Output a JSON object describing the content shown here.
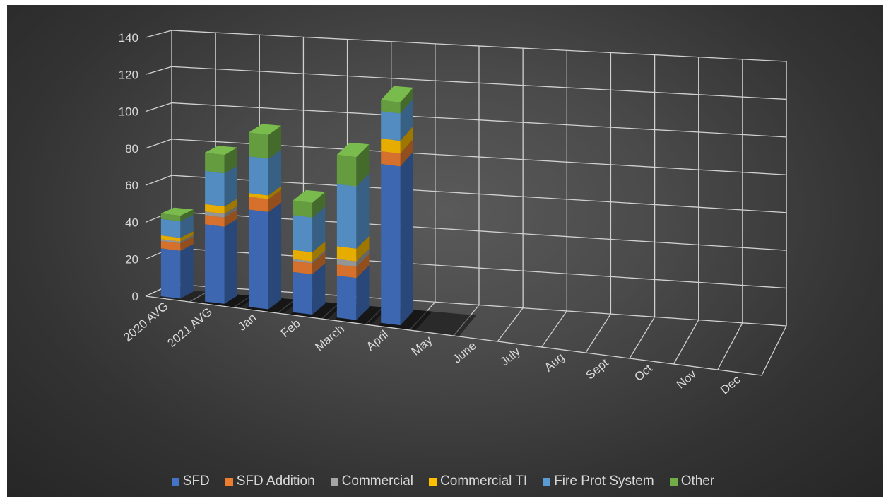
{
  "chart_data": {
    "type": "bar",
    "stacked": true,
    "view": "3d-column",
    "categories": [
      "2020 AVG",
      "2021 AVG",
      "Jan",
      "Feb",
      "March",
      "April",
      "May",
      "June",
      "July",
      "Aug",
      "Sept",
      "Oct",
      "Nov",
      "Dec"
    ],
    "series": [
      {
        "name": "SFD",
        "color": "#4472C4",
        "values": [
          26,
          42,
          53,
          22,
          23,
          87,
          0,
          0,
          0,
          0,
          0,
          0,
          0,
          0
        ]
      },
      {
        "name": "SFD Addition",
        "color": "#ED7D31",
        "values": [
          4,
          5,
          7,
          6,
          6,
          7,
          0,
          0,
          0,
          0,
          0,
          0,
          0,
          0
        ]
      },
      {
        "name": "Commercial",
        "color": "#A5A5A5",
        "values": [
          1,
          2,
          0,
          1,
          3,
          0,
          0,
          0,
          0,
          0,
          0,
          0,
          0,
          0
        ]
      },
      {
        "name": "Commercial TI",
        "color": "#FFC000",
        "values": [
          2,
          4,
          2,
          5,
          7,
          7,
          0,
          0,
          0,
          0,
          0,
          0,
          0,
          0
        ]
      },
      {
        "name": "Fire Prot System",
        "color": "#5B9BD5",
        "values": [
          9,
          18,
          20,
          19,
          34,
          15,
          0,
          0,
          0,
          0,
          0,
          0,
          0,
          0
        ]
      },
      {
        "name": "Other",
        "color": "#70AD47",
        "values": [
          3,
          10,
          13,
          8,
          16,
          6,
          0,
          0,
          0,
          0,
          0,
          0,
          0,
          0
        ]
      }
    ],
    "yticks": [
      0,
      20,
      40,
      60,
      80,
      100,
      120,
      140
    ],
    "ylim": [
      0,
      140
    ],
    "grid": true,
    "legend": "bottom",
    "title": "",
    "xlabel": "",
    "ylabel": ""
  }
}
